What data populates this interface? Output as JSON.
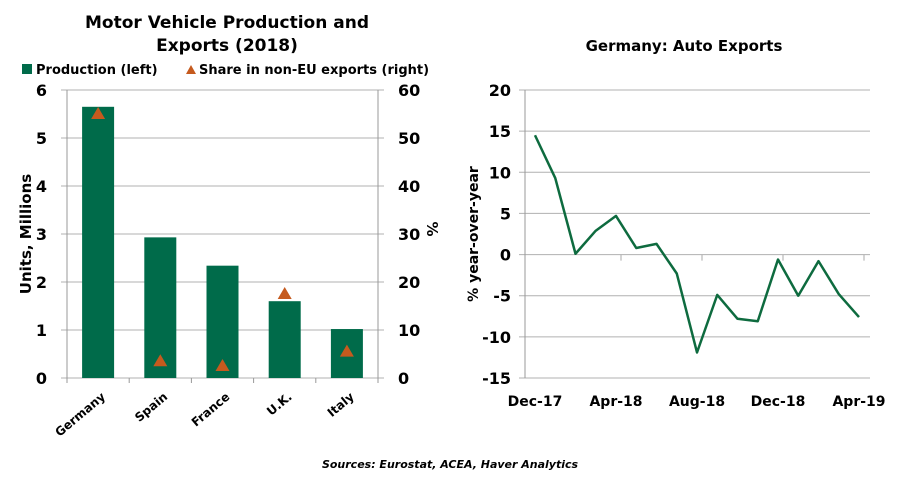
{
  "chart_data": [
    {
      "type": "bar",
      "title": "Motor Vehicle Production and Exports (2018)",
      "categories": [
        "Germany",
        "Spain",
        "France",
        "U.K.",
        "Italy"
      ],
      "series": [
        {
          "name": "Production (left)",
          "type": "bar",
          "axis": "left",
          "values": [
            5.65,
            2.93,
            2.34,
            1.6,
            1.02
          ],
          "color": "#006B4A"
        },
        {
          "name": "Share in non-EU exports (right)",
          "type": "scatter",
          "marker": "triangle",
          "axis": "right",
          "values": [
            55,
            3.5,
            2.5,
            17.5,
            5.5
          ],
          "color": "#C55A1E"
        }
      ],
      "ylabel": "Units, Millions",
      "ylim": [
        0,
        6
      ],
      "yticks": [
        "0",
        "1",
        "2",
        "3",
        "4",
        "5",
        "6"
      ],
      "y2label": "%",
      "y2lim": [
        0,
        60
      ],
      "y2ticks": [
        "0",
        "10",
        "20",
        "30",
        "40",
        "50",
        "60"
      ],
      "grid": true,
      "legend": "top"
    },
    {
      "type": "line",
      "title": "Germany: Auto Exports",
      "x": [
        "Dec-17",
        "Jan-18",
        "Feb-18",
        "Mar-18",
        "Apr-18",
        "May-18",
        "Jun-18",
        "Jul-18",
        "Aug-18",
        "Sep-18",
        "Oct-18",
        "Nov-18",
        "Dec-18",
        "Jan-19",
        "Feb-19",
        "Mar-19",
        "Apr-19"
      ],
      "series": [
        {
          "values": [
            14.5,
            9.3,
            0.1,
            2.9,
            4.7,
            0.8,
            1.3,
            -2.3,
            -11.9,
            -4.9,
            -7.8,
            -8.1,
            -0.6,
            -5.0,
            -0.8,
            -4.8,
            -7.6
          ],
          "color": "#0E6B3F"
        }
      ],
      "xticks": [
        "Dec-17",
        "Apr-18",
        "Aug-18",
        "Dec-18",
        "Apr-19"
      ],
      "ylabel": "% year-over-year",
      "ylim": [
        -15,
        20
      ],
      "yticks": [
        "-15",
        "-10",
        "-5",
        "0",
        "5",
        "10",
        "15",
        "20"
      ],
      "grid": true
    }
  ],
  "source": "Sources: Eurostat, ACEA, Haver Analytics"
}
